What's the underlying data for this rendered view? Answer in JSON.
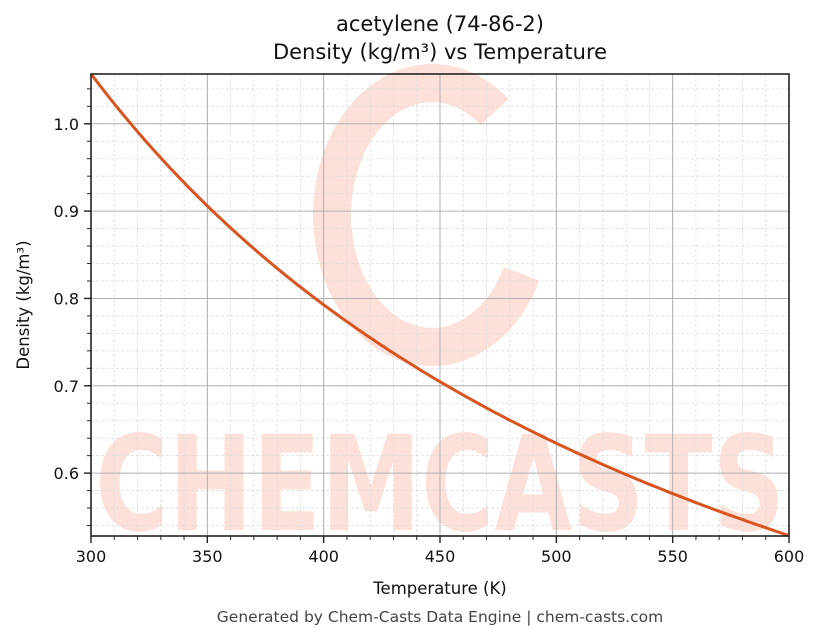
{
  "title_line1": "acetylene (74-86-2)",
  "title_line2": "Density (kg/m³) vs Temperature",
  "footer": "Generated by Chem-Casts Data Engine | chem-casts.com",
  "watermark": {
    "text": "CHEMCASTS",
    "color": "#fde0d8"
  },
  "colors": {
    "line": "#d9541f",
    "major_grid": "#b0b0b0",
    "minor_grid": "#dddddd",
    "axis": "#222222"
  },
  "chart_data": {
    "type": "line",
    "title": "acetylene (74-86-2)\nDensity (kg/m³) vs Temperature",
    "xlabel": "Temperature (K)",
    "ylabel": "Density (kg/m³)",
    "xlim": [
      300,
      600
    ],
    "ylim": [
      0.528,
      1.057
    ],
    "xticks": [
      300,
      350,
      400,
      450,
      500,
      550,
      600
    ],
    "xtick_labels": [
      "300",
      "350",
      "400",
      "450",
      "500",
      "550",
      "600"
    ],
    "yticks": [
      0.6,
      0.7,
      0.8,
      0.9,
      1.0
    ],
    "ytick_labels": [
      "0.6",
      "0.7",
      "0.8",
      "0.9",
      "1.0"
    ],
    "grid": true,
    "minor_grid": true,
    "legend": null,
    "series": [
      {
        "name": "Density",
        "x": [
          300,
          325,
          350,
          375,
          400,
          425,
          450,
          475,
          500,
          525,
          550,
          575,
          600
        ],
        "values": [
          1.057,
          0.976,
          0.906,
          0.846,
          0.793,
          0.746,
          0.705,
          0.668,
          0.634,
          0.604,
          0.577,
          0.551,
          0.528
        ]
      }
    ]
  }
}
